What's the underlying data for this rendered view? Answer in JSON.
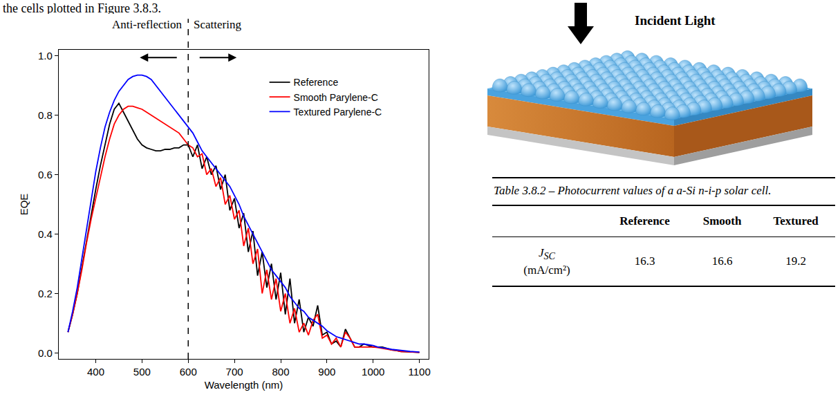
{
  "text": "the cells plotted in Figure 3.8.3.",
  "chart_data": {
    "type": "line",
    "x_label": "Wavelength (nm)",
    "y_label": "EQE",
    "x": [
      340,
      350,
      360,
      370,
      380,
      390,
      400,
      410,
      420,
      430,
      440,
      450,
      460,
      470,
      480,
      490,
      500,
      510,
      520,
      530,
      540,
      550,
      560,
      570,
      580,
      590,
      600,
      610,
      620,
      630,
      640,
      650,
      660,
      670,
      680,
      690,
      700,
      710,
      720,
      730,
      740,
      750,
      760,
      770,
      780,
      790,
      800,
      810,
      820,
      830,
      840,
      850,
      860,
      870,
      880,
      890,
      900,
      910,
      920,
      930,
      940,
      950,
      960,
      970,
      980,
      990,
      1000,
      1010,
      1020,
      1030,
      1040,
      1050,
      1060,
      1070,
      1080,
      1090,
      1100
    ],
    "series": [
      {
        "name": "Reference",
        "color": "#000000",
        "values": [
          0.07,
          0.13,
          0.2,
          0.29,
          0.38,
          0.47,
          0.55,
          0.63,
          0.7,
          0.77,
          0.82,
          0.84,
          0.81,
          0.78,
          0.75,
          0.72,
          0.7,
          0.69,
          0.685,
          0.68,
          0.68,
          0.685,
          0.685,
          0.69,
          0.69,
          0.7,
          0.7,
          0.66,
          0.7,
          0.62,
          0.66,
          0.6,
          0.63,
          0.55,
          0.6,
          0.48,
          0.52,
          0.42,
          0.47,
          0.34,
          0.41,
          0.26,
          0.34,
          0.22,
          0.3,
          0.18,
          0.27,
          0.13,
          0.25,
          0.1,
          0.18,
          0.07,
          0.12,
          0.09,
          0.16,
          0.06,
          0.07,
          0.03,
          0.04,
          0.02,
          0.08,
          0.05,
          0.02,
          0.02,
          0.03,
          0.025,
          0.02,
          0.02,
          0.02,
          0.015,
          0.01,
          0.008,
          0.005,
          0.004,
          0.003,
          0.002,
          0.002
        ]
      },
      {
        "name": "Smooth Parylene-C",
        "color": "#ff0000",
        "values": [
          0.07,
          0.13,
          0.2,
          0.28,
          0.37,
          0.45,
          0.52,
          0.59,
          0.66,
          0.72,
          0.77,
          0.8,
          0.82,
          0.83,
          0.83,
          0.825,
          0.82,
          0.81,
          0.8,
          0.79,
          0.78,
          0.77,
          0.76,
          0.75,
          0.74,
          0.72,
          0.7,
          0.69,
          0.66,
          0.67,
          0.6,
          0.62,
          0.56,
          0.59,
          0.5,
          0.53,
          0.45,
          0.48,
          0.36,
          0.42,
          0.3,
          0.35,
          0.2,
          0.28,
          0.18,
          0.25,
          0.14,
          0.2,
          0.1,
          0.15,
          0.07,
          0.1,
          0.06,
          0.11,
          0.13,
          0.05,
          0.06,
          0.03,
          0.05,
          0.02,
          0.07,
          0.05,
          0.02,
          0.02,
          0.02,
          0.02,
          0.02,
          0.018,
          0.015,
          0.012,
          0.01,
          0.008,
          0.005,
          0.004,
          0.003,
          0.002,
          0.002
        ]
      },
      {
        "name": "Textured Parylene-C",
        "color": "#0000ff",
        "values": [
          0.07,
          0.14,
          0.22,
          0.32,
          0.42,
          0.52,
          0.61,
          0.69,
          0.76,
          0.81,
          0.85,
          0.88,
          0.9,
          0.92,
          0.93,
          0.935,
          0.935,
          0.93,
          0.92,
          0.9,
          0.88,
          0.86,
          0.84,
          0.82,
          0.8,
          0.78,
          0.76,
          0.74,
          0.71,
          0.68,
          0.66,
          0.64,
          0.62,
          0.6,
          0.58,
          0.56,
          0.53,
          0.5,
          0.46,
          0.43,
          0.4,
          0.37,
          0.34,
          0.31,
          0.28,
          0.26,
          0.24,
          0.22,
          0.19,
          0.17,
          0.15,
          0.14,
          0.12,
          0.11,
          0.1,
          0.09,
          0.075,
          0.065,
          0.055,
          0.05,
          0.045,
          0.04,
          0.035,
          0.03,
          0.03,
          0.028,
          0.025,
          0.02,
          0.018,
          0.015,
          0.012,
          0.01,
          0.008,
          0.006,
          0.005,
          0.004,
          0.003
        ]
      }
    ],
    "xlim": [
      320,
      1120
    ],
    "xticks": [
      400,
      500,
      600,
      700,
      800,
      900,
      1000,
      1100
    ],
    "ylim": [
      -0.02,
      1.02
    ],
    "yticks": [
      {
        "value": 0,
        "label": "0.0"
      },
      0.2,
      0.4,
      0.6,
      0.8,
      {
        "value": 1,
        "label": "1.0"
      }
    ],
    "divider": {
      "x": 600,
      "labels": [
        "Anti-reflection",
        "Scattering"
      ]
    },
    "legend": "top right",
    "grid": false
  },
  "diagram": {
    "label": "Incident Light"
  },
  "table": {
    "caption": "Table 3.8.2 – Photocurrent values of a a-Si n-i-p solar cell.",
    "header": [
      "Reference",
      "Smooth",
      "Textured"
    ],
    "rows": [
      {
        "symbol": "J",
        "subscript": "SC",
        "unit": "(mA/cm²)",
        "values": [
          16.3,
          16.6,
          19.2
        ]
      }
    ]
  }
}
